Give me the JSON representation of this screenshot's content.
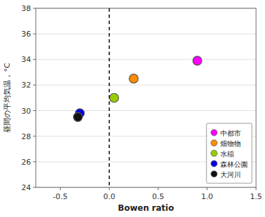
{
  "chart_data": {
    "type": "scatter",
    "xlabel": "Bowen ratio",
    "ylabel": "昼間の平均気温，°C",
    "xlim": [
      -0.75,
      1.5
    ],
    "ylim": [
      24,
      38
    ],
    "xticks": [
      -0.5,
      {
        "value": 0.0,
        "label": "0.0"
      },
      0.5,
      {
        "value": 1.0,
        "label": "1.0"
      },
      1.5
    ],
    "yticks": [
      24,
      26,
      28,
      30,
      32,
      34,
      36,
      38
    ],
    "grid": "y",
    "legend": "lower right",
    "marker": "circle",
    "reference_lines": [
      {
        "x": 0.0,
        "line_style": "dashed"
      }
    ],
    "series": [
      {
        "name": "中都市",
        "color": "#FF00FF",
        "x": [
          0.9
        ],
        "values": [
          33.9
        ]
      },
      {
        "name": "畑物物",
        "color": "#FF8C00",
        "x": [
          0.25
        ],
        "values": [
          32.5
        ]
      },
      {
        "name": "水稲",
        "color": "#99CC00",
        "x": [
          0.05
        ],
        "values": [
          31.0
        ]
      },
      {
        "name": "森林公園",
        "color": "#0000EE",
        "x": [
          -0.3
        ],
        "values": [
          29.8
        ]
      },
      {
        "name": "大河川",
        "color": "#111111",
        "x": [
          -0.32
        ],
        "values": [
          29.5
        ]
      }
    ]
  }
}
